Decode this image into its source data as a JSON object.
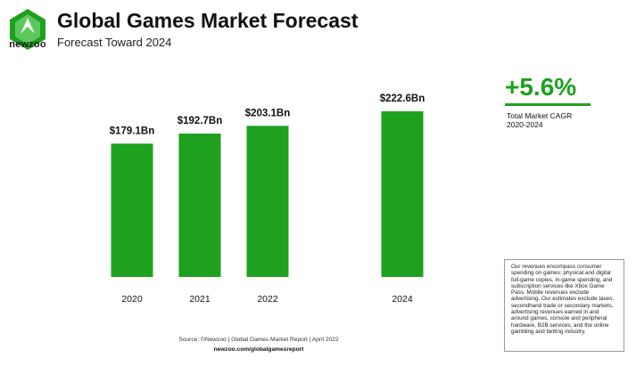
{
  "brand": {
    "name": "newzoo",
    "accent": "#1ea11e"
  },
  "header": {
    "title": "Global Games Market Forecast",
    "subtitle": "Forecast Toward 2024"
  },
  "chart_data": {
    "type": "bar",
    "title": "Global Games Market Forecast",
    "subtitle": "Forecast Toward 2024",
    "categories": [
      "2020",
      "2021",
      "2022",
      "2024"
    ],
    "values": [
      179.1,
      192.7,
      203.1,
      222.6
    ],
    "data_labels": [
      "$179.1Bn",
      "$192.7Bn",
      "$203.1Bn",
      "$222.6Bn"
    ],
    "unit": "USD billions",
    "ylim": [
      0,
      280
    ],
    "color": "#1ea11e",
    "xlabel": "",
    "ylabel": "",
    "grid": false
  },
  "cagr": {
    "value": "+5.6%",
    "label_line1": "Total Market CAGR",
    "label_line2": "2020-2024"
  },
  "note": "Our revenues encompass consumer spending on games: physical and digital full-game copies, in-game spending, and subscription services like Xbox Game Pass. Mobile revenues exclude advertising. Our estimates exclude taxes, secondhand trade or secondary markets, advertising revenues earned in and around games, console and peripheral hardware, B2B services, and the online gambling and betting industry.",
  "footer": {
    "source": "Source: ©Newzoo | Global Games Market Report | April 2022",
    "url": "newzoo.com/globalgamesreport"
  }
}
